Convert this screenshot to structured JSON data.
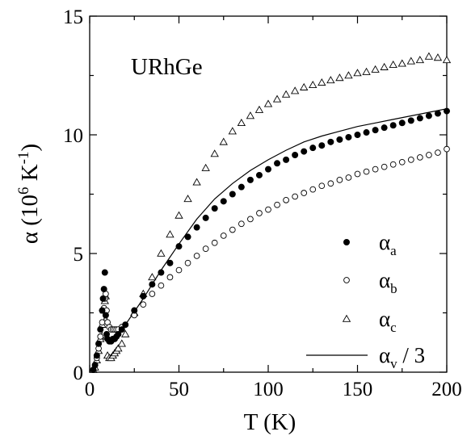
{
  "chart_data": {
    "type": "scatter",
    "annotation": "URhGe",
    "xlabel": "T (K)",
    "ylabel_parts": {
      "alpha": "α",
      "open": " (10",
      "sup1": "6",
      "mid": " K",
      "sup2": "-1",
      "close": ")"
    },
    "xlim": [
      0,
      200
    ],
    "ylim": [
      0,
      15
    ],
    "xticks": [
      0,
      50,
      100,
      150,
      200
    ],
    "yticks": [
      0,
      5,
      10,
      15
    ],
    "xtick_labels": [
      "0",
      "50",
      "100",
      "150",
      "200"
    ],
    "ytick_labels": [
      "0",
      "5",
      "10",
      "15"
    ],
    "grid": false,
    "legend_position": "bottom-right",
    "legend": [
      {
        "symbol": "α",
        "sub": "a",
        "suffix": "",
        "marker": "filled-circle"
      },
      {
        "symbol": "α",
        "sub": "b",
        "suffix": "",
        "marker": "open-circle"
      },
      {
        "symbol": "α",
        "sub": "c",
        "suffix": "",
        "marker": "open-triangle"
      },
      {
        "symbol": "α",
        "sub": "v",
        "suffix": " / 3",
        "marker": "line"
      }
    ],
    "series": [
      {
        "marker": "filled-circle",
        "points": [
          [
            2,
            0.1
          ],
          [
            3,
            0.3
          ],
          [
            4,
            0.7
          ],
          [
            5,
            1.2
          ],
          [
            6,
            1.8
          ],
          [
            7,
            2.6
          ],
          [
            7.5,
            3.1
          ],
          [
            8,
            3.5
          ],
          [
            8.5,
            4.2
          ],
          [
            9,
            2.4
          ],
          [
            9.5,
            1.6
          ],
          [
            10,
            1.4
          ],
          [
            11,
            1.3
          ],
          [
            12,
            1.3
          ],
          [
            13,
            1.4
          ],
          [
            14,
            1.4
          ],
          [
            15,
            1.5
          ],
          [
            16,
            1.6
          ],
          [
            18,
            1.8
          ],
          [
            20,
            2.0
          ],
          [
            25,
            2.6
          ],
          [
            30,
            3.2
          ],
          [
            35,
            3.7
          ],
          [
            40,
            4.2
          ],
          [
            45,
            4.6
          ],
          [
            50,
            5.3
          ],
          [
            55,
            5.7
          ],
          [
            60,
            6.1
          ],
          [
            65,
            6.5
          ],
          [
            70,
            6.9
          ],
          [
            75,
            7.2
          ],
          [
            80,
            7.5
          ],
          [
            85,
            7.8
          ],
          [
            90,
            8.1
          ],
          [
            95,
            8.3
          ],
          [
            100,
            8.55
          ],
          [
            105,
            8.8
          ],
          [
            110,
            8.95
          ],
          [
            115,
            9.15
          ],
          [
            120,
            9.3
          ],
          [
            125,
            9.45
          ],
          [
            130,
            9.55
          ],
          [
            135,
            9.7
          ],
          [
            140,
            9.8
          ],
          [
            145,
            9.9
          ],
          [
            150,
            10.0
          ],
          [
            155,
            10.1
          ],
          [
            160,
            10.2
          ],
          [
            165,
            10.3
          ],
          [
            170,
            10.4
          ],
          [
            175,
            10.5
          ],
          [
            180,
            10.6
          ],
          [
            185,
            10.7
          ],
          [
            190,
            10.8
          ],
          [
            195,
            10.9
          ],
          [
            200,
            11.0
          ]
        ]
      },
      {
        "marker": "open-circle",
        "points": [
          [
            2,
            0.1
          ],
          [
            3,
            0.3
          ],
          [
            4,
            0.6
          ],
          [
            5,
            1.0
          ],
          [
            6,
            1.5
          ],
          [
            7,
            2.1
          ],
          [
            8,
            2.7
          ],
          [
            8.5,
            3.1
          ],
          [
            9,
            3.3
          ],
          [
            9.5,
            2.6
          ],
          [
            10,
            2.1
          ],
          [
            11,
            1.9
          ],
          [
            12,
            1.8
          ],
          [
            13,
            1.8
          ],
          [
            14,
            1.8
          ],
          [
            15,
            1.8
          ],
          [
            16,
            1.8
          ],
          [
            18,
            1.9
          ],
          [
            20,
            2.0
          ],
          [
            25,
            2.4
          ],
          [
            30,
            2.85
          ],
          [
            35,
            3.3
          ],
          [
            40,
            3.65
          ],
          [
            45,
            4.0
          ],
          [
            50,
            4.3
          ],
          [
            55,
            4.6
          ],
          [
            60,
            4.9
          ],
          [
            65,
            5.2
          ],
          [
            70,
            5.45
          ],
          [
            75,
            5.75
          ],
          [
            80,
            6.0
          ],
          [
            85,
            6.25
          ],
          [
            90,
            6.45
          ],
          [
            95,
            6.7
          ],
          [
            100,
            6.85
          ],
          [
            105,
            7.05
          ],
          [
            110,
            7.25
          ],
          [
            115,
            7.4
          ],
          [
            120,
            7.55
          ],
          [
            125,
            7.7
          ],
          [
            130,
            7.85
          ],
          [
            135,
            7.95
          ],
          [
            140,
            8.1
          ],
          [
            145,
            8.2
          ],
          [
            150,
            8.35
          ],
          [
            155,
            8.45
          ],
          [
            160,
            8.55
          ],
          [
            165,
            8.65
          ],
          [
            170,
            8.75
          ],
          [
            175,
            8.85
          ],
          [
            180,
            8.95
          ],
          [
            185,
            9.05
          ],
          [
            190,
            9.15
          ],
          [
            195,
            9.25
          ],
          [
            200,
            9.4
          ]
        ]
      },
      {
        "marker": "open-triangle",
        "points": [
          [
            2,
            0.1
          ],
          [
            3,
            0.2
          ],
          [
            4,
            0.5
          ],
          [
            5,
            0.9
          ],
          [
            6,
            1.4
          ],
          [
            7,
            2.0
          ],
          [
            8,
            2.6
          ],
          [
            8.5,
            3.0
          ],
          [
            9,
            3.2
          ],
          [
            9.5,
            1.5
          ],
          [
            10,
            0.7
          ],
          [
            11,
            0.6
          ],
          [
            12,
            0.6
          ],
          [
            13,
            0.7
          ],
          [
            14,
            0.8
          ],
          [
            15,
            0.9
          ],
          [
            16,
            1.0
          ],
          [
            18,
            1.2
          ],
          [
            20,
            1.6
          ],
          [
            25,
            2.5
          ],
          [
            30,
            3.3
          ],
          [
            35,
            4.0
          ],
          [
            40,
            5.0
          ],
          [
            45,
            5.8
          ],
          [
            50,
            6.6
          ],
          [
            55,
            7.3
          ],
          [
            60,
            8.0
          ],
          [
            65,
            8.6
          ],
          [
            70,
            9.2
          ],
          [
            75,
            9.7
          ],
          [
            80,
            10.15
          ],
          [
            85,
            10.5
          ],
          [
            90,
            10.8
          ],
          [
            95,
            11.05
          ],
          [
            100,
            11.3
          ],
          [
            105,
            11.5
          ],
          [
            110,
            11.7
          ],
          [
            115,
            11.85
          ],
          [
            120,
            12.0
          ],
          [
            125,
            12.1
          ],
          [
            130,
            12.2
          ],
          [
            135,
            12.3
          ],
          [
            140,
            12.4
          ],
          [
            145,
            12.5
          ],
          [
            150,
            12.6
          ],
          [
            155,
            12.65
          ],
          [
            160,
            12.75
          ],
          [
            165,
            12.85
          ],
          [
            170,
            12.95
          ],
          [
            175,
            13.0
          ],
          [
            180,
            13.1
          ],
          [
            185,
            13.15
          ],
          [
            190,
            13.3
          ],
          [
            195,
            13.25
          ],
          [
            200,
            13.15
          ]
        ]
      },
      {
        "marker": "line",
        "points": [
          [
            0,
            0.05
          ],
          [
            2,
            0.2
          ],
          [
            4,
            0.5
          ],
          [
            6,
            1.2
          ],
          [
            8,
            2.2
          ],
          [
            9,
            2.8
          ],
          [
            10,
            2.0
          ],
          [
            12,
            1.7
          ],
          [
            15,
            1.7
          ],
          [
            20,
            2.0
          ],
          [
            30,
            3.1
          ],
          [
            40,
            4.3
          ],
          [
            50,
            5.4
          ],
          [
            60,
            6.45
          ],
          [
            70,
            7.3
          ],
          [
            80,
            7.95
          ],
          [
            90,
            8.5
          ],
          [
            100,
            8.95
          ],
          [
            110,
            9.35
          ],
          [
            120,
            9.7
          ],
          [
            130,
            9.95
          ],
          [
            140,
            10.15
          ],
          [
            150,
            10.35
          ],
          [
            160,
            10.5
          ],
          [
            170,
            10.65
          ],
          [
            180,
            10.8
          ],
          [
            190,
            10.95
          ],
          [
            200,
            11.1
          ]
        ]
      }
    ]
  }
}
